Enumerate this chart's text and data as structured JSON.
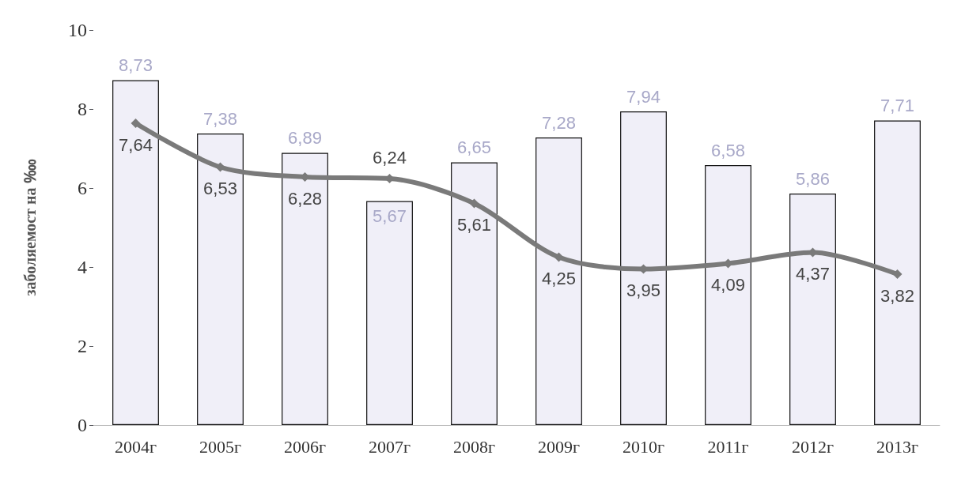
{
  "chart_data": {
    "type": "bar",
    "ylabel": "заболяемост на ‱",
    "categories": [
      "2004г",
      "2005г",
      "2006г",
      "2007г",
      "2008г",
      "2009г",
      "2010г",
      "2011г",
      "2012г",
      "2013г"
    ],
    "series": [
      {
        "color": "#f0eff8",
        "values": [
          8.73,
          7.38,
          6.89,
          5.67,
          6.65,
          7.28,
          7.94,
          6.58,
          5.86,
          7.71
        ],
        "value_labels": [
          "8,73",
          "7,38",
          "6,89",
          "5,67",
          "6,65",
          "7,28",
          "7,94",
          "6,58",
          "5,86",
          "7,71"
        ]
      },
      {
        "type": "line",
        "color": "#7a7a7a",
        "marker": "diamond",
        "values": [
          7.64,
          6.53,
          6.28,
          6.24,
          5.61,
          4.25,
          3.95,
          4.09,
          4.37,
          3.82
        ],
        "value_labels": [
          "7,64",
          "6,53",
          "6,28",
          "6,24",
          "5,61",
          "4,25",
          "3,95",
          "4,09",
          "4,37",
          "3,82"
        ]
      }
    ],
    "ylim": [
      0,
      10
    ],
    "yticks": [
      0,
      2,
      4,
      6,
      8,
      10
    ],
    "grid": false
  }
}
